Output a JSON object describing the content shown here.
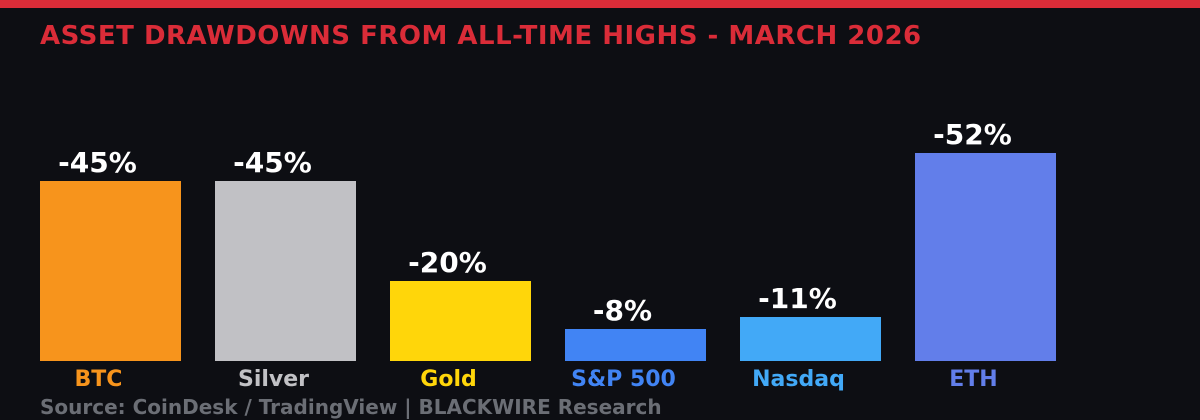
{
  "accent_color": "#da2c38",
  "background_color": "#0d0e13",
  "chart_data": {
    "type": "bar",
    "title": "ASSET DRAWDOWNS FROM ALL-TIME HIGHS - MARCH 2026",
    "title_color": "#da2c38",
    "xlabel": "",
    "ylabel": "",
    "ylim": [
      -55,
      0
    ],
    "grid": false,
    "legend": "none",
    "value_label_color": "#ffffff",
    "categories": [
      "BTC",
      "Silver",
      "Gold",
      "S&P 500",
      "Nasdaq",
      "ETH"
    ],
    "values": [
      -45,
      -45,
      -20,
      -8,
      -11,
      -52
    ],
    "items": [
      {
        "category": "BTC",
        "value": -45,
        "label": "-45%",
        "color": "#f7941c"
      },
      {
        "category": "Silver",
        "value": -45,
        "label": "-45%",
        "color": "#c1c1c5"
      },
      {
        "category": "Gold",
        "value": -20,
        "label": "-20%",
        "color": "#ffd60a"
      },
      {
        "category": "S&P 500",
        "value": -8,
        "label": "-8%",
        "color": "#4184f4"
      },
      {
        "category": "Nasdaq",
        "value": -11,
        "label": "-11%",
        "color": "#42a9f7"
      },
      {
        "category": "ETH",
        "value": -52,
        "label": "-52%",
        "color": "#627eea"
      }
    ]
  },
  "footer": {
    "source": "Source: CoinDesk / TradingView | BLACKWIRE Research"
  }
}
